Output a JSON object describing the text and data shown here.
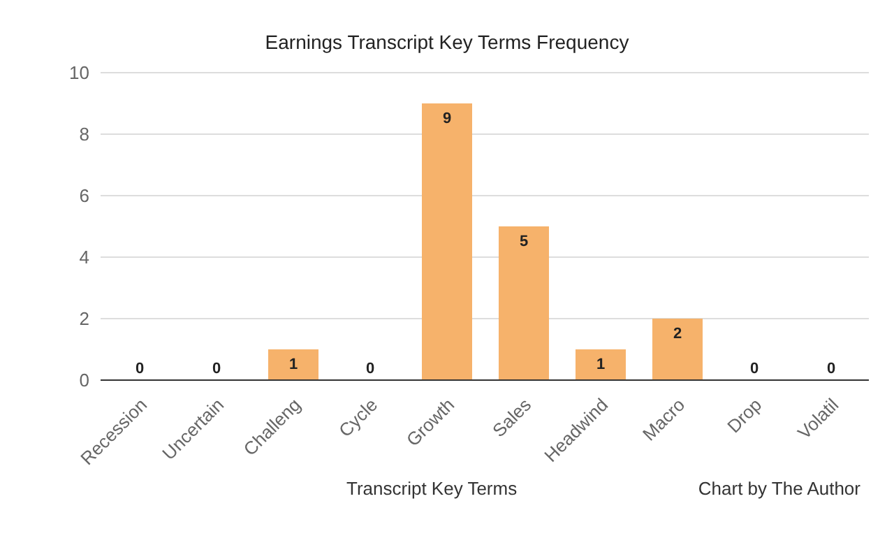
{
  "chart_data": {
    "type": "bar",
    "title": "Earnings Transcript Key Terms Frequency",
    "xlabel": "Transcript Key Terms",
    "annotations": [
      "Chart by The Author"
    ],
    "categories": [
      "Recession",
      "Uncertain",
      "Challeng",
      "Cycle",
      "Growth",
      "Sales",
      "Headwind",
      "Macro",
      "Drop",
      "Volatil"
    ],
    "values": [
      0,
      0,
      1,
      0,
      9,
      5,
      1,
      2,
      0,
      0
    ],
    "color": "#f6b26b",
    "ylim": [
      0,
      10
    ],
    "yticks": [
      0,
      2,
      4,
      6,
      8,
      10
    ],
    "grid": "y",
    "data_labels": true
  }
}
